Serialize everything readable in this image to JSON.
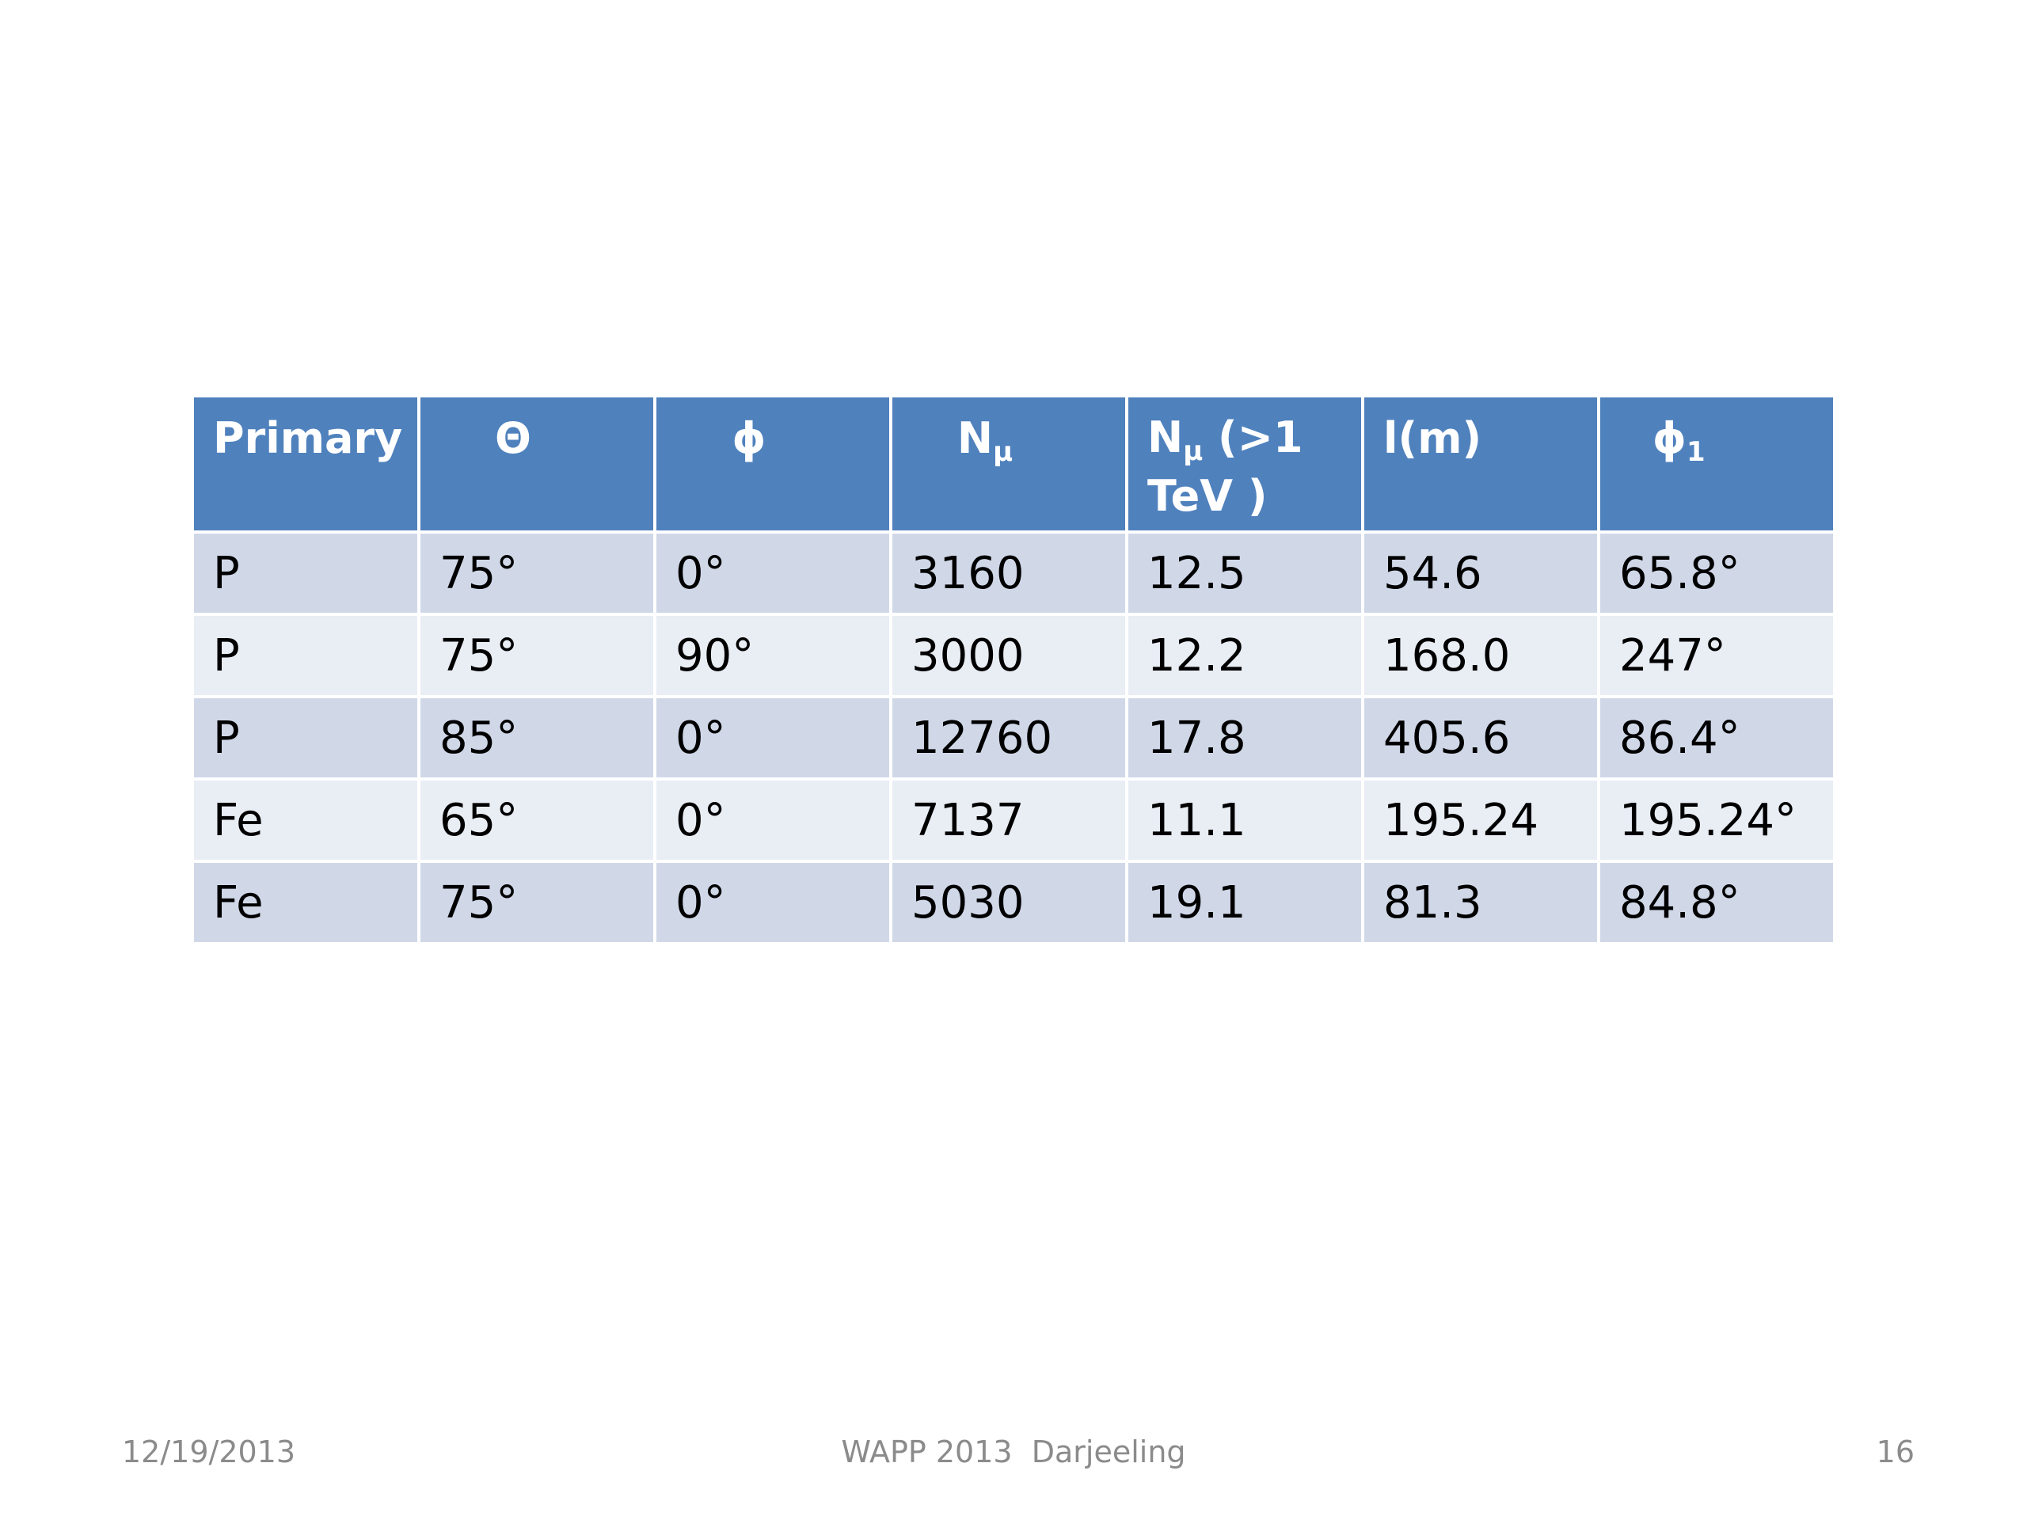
{
  "table": {
    "headers": {
      "primary": "Primary",
      "theta": "Θ",
      "phi": "ϕ",
      "n_mu_base": "N",
      "n_mu_sub": "μ",
      "n_mu_tev_base": "N",
      "n_mu_tev_sub": "μ",
      "n_mu_tev_rest": " (>1 TeV )",
      "l_m": "l(m)",
      "phi1_base": "ϕ",
      "phi1_sub": "1"
    },
    "rows": [
      [
        "P",
        "75°",
        "0°",
        "3160",
        "12.5",
        "54.6",
        "65.8°"
      ],
      [
        "P",
        "75°",
        "90°",
        "3000",
        "12.2",
        "168.0",
        "247°"
      ],
      [
        "P",
        "85°",
        "0°",
        "12760",
        "17.8",
        "405.6",
        "86.4°"
      ],
      [
        "Fe",
        "65°",
        "0°",
        "7137",
        "11.1",
        "195.24",
        "195.24°"
      ],
      [
        "Fe",
        "75°",
        "0°",
        "5030",
        "19.1",
        "81.3",
        "84.8°"
      ]
    ]
  },
  "footer": {
    "date": "12/19/2013",
    "center": "WAPP 2013  Darjeeling",
    "page": "16"
  },
  "colors": {
    "header_bg": "#4f81bd",
    "row_dark": "#d0d8e8",
    "row_light": "#e9edf4",
    "footer_text": "#8b8b8b"
  }
}
